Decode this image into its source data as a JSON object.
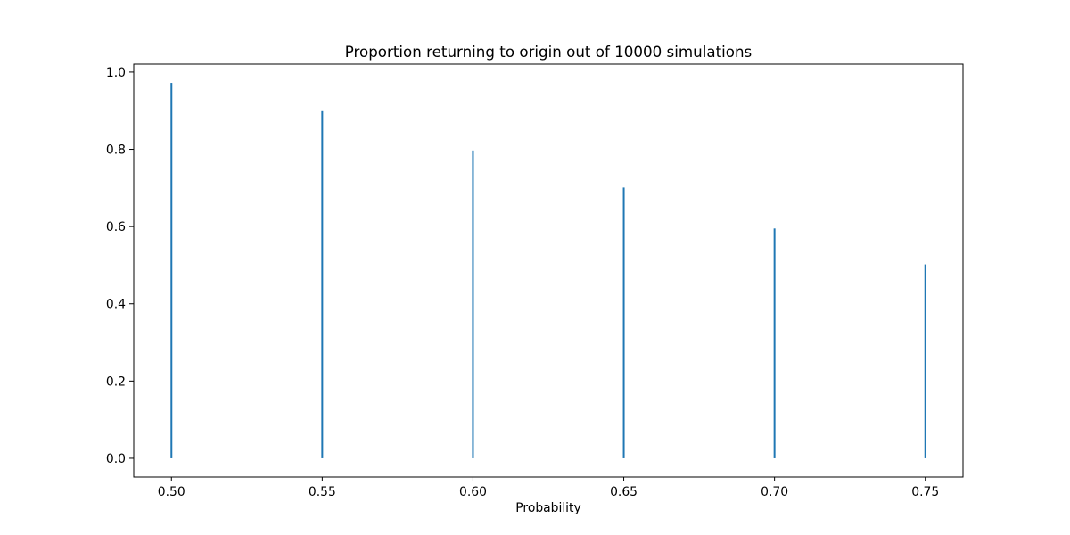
{
  "chart_data": {
    "type": "bar",
    "title": "Proportion returning to origin out of 10000 simulations",
    "xlabel": "Probability",
    "ylabel": "",
    "x": [
      0.5,
      0.55,
      0.6,
      0.65,
      0.7,
      0.75
    ],
    "values": [
      0.972,
      0.901,
      0.797,
      0.701,
      0.595,
      0.502
    ],
    "xlim": [
      0.4875,
      0.7625
    ],
    "ylim": [
      -0.0486,
      1.0206
    ],
    "xticks": [
      "0.50",
      "0.55",
      "0.60",
      "0.65",
      "0.70",
      "0.75"
    ],
    "yticks": [
      "0.0",
      "0.2",
      "0.4",
      "0.6",
      "0.8",
      "1.0"
    ],
    "grid": false,
    "bar_color": "#1f77b4"
  }
}
